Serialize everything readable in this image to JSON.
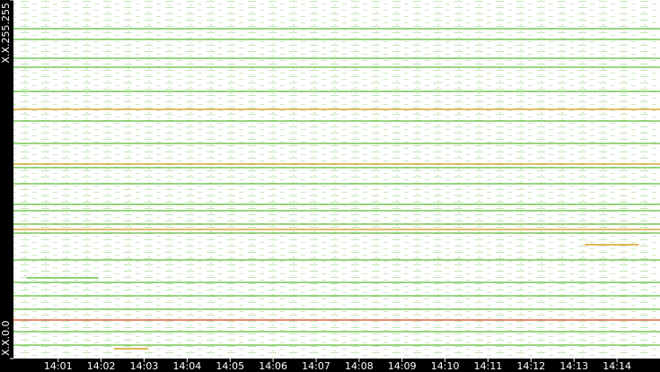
{
  "chart_data": {
    "type": "address-timeline",
    "xlim": [
      -0.04,
      15
    ],
    "xticks": [
      {
        "value": 1,
        "label": "14:01"
      },
      {
        "value": 2,
        "label": "14:02"
      },
      {
        "value": 3,
        "label": "14:03"
      },
      {
        "value": 4,
        "label": "14:04"
      },
      {
        "value": 5,
        "label": "14:05"
      },
      {
        "value": 6,
        "label": "14:06"
      },
      {
        "value": 7,
        "label": "14:07"
      },
      {
        "value": 8,
        "label": "14:08"
      },
      {
        "value": 9,
        "label": "14:09"
      },
      {
        "value": 10,
        "label": "14:10"
      },
      {
        "value": 11,
        "label": "14:11"
      },
      {
        "value": 12,
        "label": "14:12"
      },
      {
        "value": 13,
        "label": "14:13"
      },
      {
        "value": 14,
        "label": "14:14"
      }
    ],
    "ylim": [
      0,
      65535
    ],
    "yticks": [
      {
        "value": 0,
        "label": "X.X.0.0"
      },
      {
        "value": 65535,
        "label": "X.X.255.255"
      }
    ],
    "lines": [
      {
        "value": 60293,
        "color": "#6cc24a"
      },
      {
        "value": 58327,
        "color": "#6cc24a"
      },
      {
        "value": 54886,
        "color": "#6cc24a"
      },
      {
        "value": 53248,
        "color": "#6cc24a"
      },
      {
        "value": 48824,
        "color": "#6cc24a"
      },
      {
        "value": 45548,
        "color": "#d8a020"
      },
      {
        "value": 43418,
        "color": "#6cc24a"
      },
      {
        "value": 39322,
        "color": "#6cc24a"
      },
      {
        "value": 35553,
        "color": "#d8a020"
      },
      {
        "value": 34898,
        "color": "#6cc24a"
      },
      {
        "value": 31949,
        "color": "#6cc24a"
      },
      {
        "value": 28180,
        "color": "#6cc24a"
      },
      {
        "value": 27034,
        "color": "#6cc24a"
      },
      {
        "value": 24576,
        "color": "#6cc24a"
      },
      {
        "value": 23593,
        "color": "#d8a020"
      },
      {
        "value": 22938,
        "color": "#6cc24a"
      },
      {
        "value": 18022,
        "color": "#6cc24a"
      },
      {
        "value": 13926,
        "color": "#6cc24a"
      },
      {
        "value": 11469,
        "color": "#6cc24a"
      },
      {
        "value": 9011,
        "color": "#6cc24a"
      },
      {
        "value": 7045,
        "color": "#e05030"
      },
      {
        "value": 4915,
        "color": "#6cc24a"
      },
      {
        "value": 2458,
        "color": "#6cc24a"
      }
    ],
    "segments": [
      {
        "value": 20808,
        "x": [
          13.25,
          14.5
        ],
        "color": "#d8a020"
      },
      {
        "value": 1802,
        "x": [
          2.3,
          3.1
        ],
        "color": "#d8a020"
      },
      {
        "value": 14746,
        "x": [
          0.27,
          1.94
        ],
        "color": "#6cc24a"
      }
    ]
  }
}
